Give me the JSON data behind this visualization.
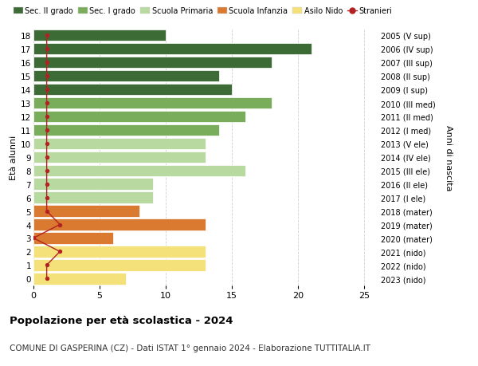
{
  "ages": [
    18,
    17,
    16,
    15,
    14,
    13,
    12,
    11,
    10,
    9,
    8,
    7,
    6,
    5,
    4,
    3,
    2,
    1,
    0
  ],
  "right_labels": [
    "2005 (V sup)",
    "2006 (IV sup)",
    "2007 (III sup)",
    "2008 (II sup)",
    "2009 (I sup)",
    "2010 (III med)",
    "2011 (II med)",
    "2012 (I med)",
    "2013 (V ele)",
    "2014 (IV ele)",
    "2015 (III ele)",
    "2016 (II ele)",
    "2017 (I ele)",
    "2018 (mater)",
    "2019 (mater)",
    "2020 (mater)",
    "2021 (nido)",
    "2022 (nido)",
    "2023 (nido)"
  ],
  "bar_values": [
    10,
    21,
    18,
    14,
    15,
    18,
    16,
    14,
    13,
    13,
    16,
    9,
    9,
    8,
    13,
    6,
    13,
    13,
    7
  ],
  "bar_colors": [
    "#3d6b35",
    "#3d6b35",
    "#3d6b35",
    "#3d6b35",
    "#3d6b35",
    "#7aad5b",
    "#7aad5b",
    "#7aad5b",
    "#b8d9a0",
    "#b8d9a0",
    "#b8d9a0",
    "#b8d9a0",
    "#b8d9a0",
    "#d97a30",
    "#d97a30",
    "#d97a30",
    "#f5e17a",
    "#f5e17a",
    "#f5e17a"
  ],
  "stranieri_values": [
    1,
    1,
    1,
    1,
    1,
    1,
    1,
    1,
    1,
    1,
    1,
    1,
    1,
    1,
    2,
    0,
    2,
    1,
    1
  ],
  "stranieri_color": "#b22222",
  "legend_labels": [
    "Sec. II grado",
    "Sec. I grado",
    "Scuola Primaria",
    "Scuola Infanzia",
    "Asilo Nido",
    "Stranieri"
  ],
  "legend_colors": [
    "#3d6b35",
    "#7aad5b",
    "#b8d9a0",
    "#d97a30",
    "#f5e17a",
    "#b22222"
  ],
  "title": "Popolazione per età scolastica - 2024",
  "subtitle": "COMUNE DI GASPERINA (CZ) - Dati ISTAT 1° gennaio 2024 - Elaborazione TUTTITALIA.IT",
  "ylabel_left": "Età alunni",
  "ylabel_right": "Anni di nascita",
  "xlim": [
    0,
    26
  ],
  "background_color": "#ffffff",
  "grid_color": "#d0d0d0",
  "bar_edge_color": "#ffffff"
}
